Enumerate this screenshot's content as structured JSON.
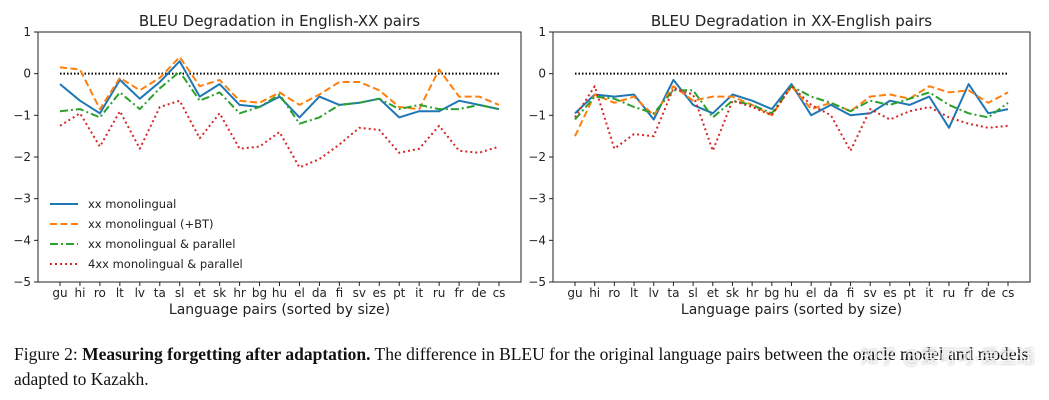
{
  "colors": {
    "mono": "#1f77b4",
    "bt": "#ff7f0e",
    "parallel": "#2ca02c",
    "x4": "#d62728",
    "reference": "#000000"
  },
  "chart_data": [
    {
      "type": "line",
      "title": "BLEU Degradation in English-XX pairs",
      "xlabel": "Language pairs (sorted by size)",
      "ylabel": "",
      "ylim": [
        -5,
        1
      ],
      "yticks": [
        "1",
        "0",
        "−1",
        "−2",
        "−3",
        "−4",
        "−5"
      ],
      "grid": false,
      "reference_line": 0,
      "legend_placement": "lower-left",
      "categories": [
        "gu",
        "hi",
        "ro",
        "lt",
        "lv",
        "ta",
        "sl",
        "et",
        "sk",
        "hr",
        "bg",
        "hu",
        "el",
        "da",
        "fi",
        "sv",
        "es",
        "pt",
        "it",
        "ru",
        "fr",
        "de",
        "cs"
      ],
      "series": [
        {
          "name": "xx monolingual",
          "style": "solid",
          "values": [
            -0.25,
            -0.65,
            -0.95,
            -0.15,
            -0.6,
            -0.2,
            0.3,
            -0.55,
            -0.25,
            -0.75,
            -0.8,
            -0.55,
            -1.05,
            -0.55,
            -0.75,
            -0.7,
            -0.6,
            -1.05,
            -0.9,
            -0.9,
            -0.65,
            -0.75,
            -0.85
          ]
        },
        {
          "name": "xx monolingual (+BT)",
          "style": "dashed",
          "values": [
            0.15,
            0.1,
            -0.85,
            -0.1,
            -0.4,
            -0.1,
            0.4,
            -0.3,
            -0.15,
            -0.65,
            -0.7,
            -0.45,
            -0.75,
            -0.5,
            -0.2,
            -0.2,
            -0.4,
            -0.8,
            -0.85,
            0.1,
            -0.55,
            -0.55,
            -0.75
          ]
        },
        {
          "name": "xx monolingual & parallel",
          "style": "dashdot",
          "values": [
            -0.9,
            -0.85,
            -1.05,
            -0.45,
            -0.85,
            -0.35,
            0.05,
            -0.65,
            -0.45,
            -0.95,
            -0.8,
            -0.5,
            -1.2,
            -1.05,
            -0.75,
            -0.7,
            -0.6,
            -0.85,
            -0.75,
            -0.85,
            -0.85,
            -0.75,
            -0.85
          ]
        },
        {
          "name": "4xx monolingual & parallel",
          "style": "dotted",
          "values": [
            -1.25,
            -0.95,
            -1.75,
            -0.9,
            -1.8,
            -0.8,
            -0.65,
            -1.55,
            -0.95,
            -1.8,
            -1.75,
            -1.4,
            -2.25,
            -2.05,
            -1.7,
            -1.3,
            -1.35,
            -1.9,
            -1.8,
            -1.25,
            -1.85,
            -1.9,
            -1.75
          ]
        }
      ]
    },
    {
      "type": "line",
      "title": "BLEU Degradation in XX-English pairs",
      "xlabel": "Language pairs (sorted by size)",
      "ylabel": "",
      "ylim": [
        -5,
        1
      ],
      "yticks": [
        "1",
        "0",
        "−1",
        "−2",
        "−3",
        "−4",
        "−5"
      ],
      "grid": false,
      "reference_line": 0,
      "categories": [
        "gu",
        "hi",
        "ro",
        "lt",
        "lv",
        "ta",
        "sl",
        "et",
        "sk",
        "hr",
        "bg",
        "hu",
        "el",
        "da",
        "fi",
        "sv",
        "es",
        "pt",
        "it",
        "ru",
        "fr",
        "de",
        "cs"
      ],
      "series": [
        {
          "name": "xx monolingual",
          "style": "solid",
          "values": [
            -0.95,
            -0.5,
            -0.55,
            -0.5,
            -1.1,
            -0.15,
            -0.75,
            -0.95,
            -0.5,
            -0.65,
            -0.85,
            -0.25,
            -1.0,
            -0.75,
            -1.0,
            -0.95,
            -0.65,
            -0.75,
            -0.55,
            -1.3,
            -0.25,
            -0.95,
            -0.85
          ]
        },
        {
          "name": "xx monolingual (+BT)",
          "style": "dashed",
          "values": [
            -1.5,
            -0.5,
            -0.7,
            -0.55,
            -1.0,
            -0.3,
            -0.65,
            -0.55,
            -0.55,
            -0.75,
            -1.0,
            -0.3,
            -0.85,
            -0.7,
            -0.9,
            -0.55,
            -0.5,
            -0.6,
            -0.3,
            -0.45,
            -0.4,
            -0.7,
            -0.45
          ]
        },
        {
          "name": "xx monolingual & parallel",
          "style": "dashdot",
          "values": [
            -1.1,
            -0.55,
            -0.6,
            -0.8,
            -0.95,
            -0.4,
            -0.4,
            -1.05,
            -0.65,
            -0.75,
            -0.95,
            -0.3,
            -0.55,
            -0.7,
            -0.9,
            -0.65,
            -0.75,
            -0.6,
            -0.45,
            -0.75,
            -0.95,
            -1.05,
            -0.7
          ]
        },
        {
          "name": "4xx monolingual & parallel",
          "style": "dotted",
          "values": [
            -1.05,
            -0.3,
            -1.8,
            -1.45,
            -1.5,
            -0.35,
            -0.5,
            -1.85,
            -0.65,
            -0.8,
            -1.0,
            -0.3,
            -0.75,
            -1.0,
            -1.85,
            -0.85,
            -1.1,
            -0.9,
            -0.8,
            -1.05,
            -1.2,
            -1.3,
            -1.25
          ]
        }
      ]
    }
  ],
  "caption": {
    "prefix": "Figure 2: ",
    "bold": "Measuring forgetting after adaptation.",
    "rest": " The difference in BLEU for the original language pairs between the oracle model and models adapted to Kazakh."
  },
  "watermark": "知乎 @爱可可-爱生活"
}
